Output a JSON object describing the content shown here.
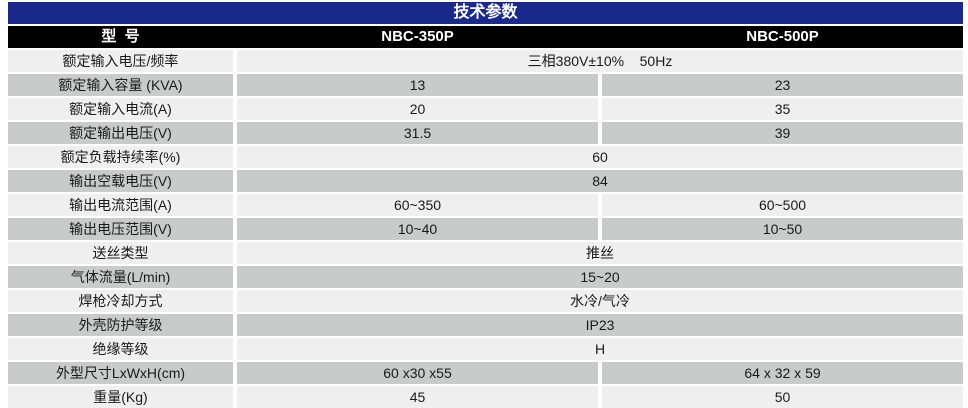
{
  "table": {
    "title": "技术参数",
    "header": {
      "model_label": "型  号",
      "col1": "NBC-350P",
      "col2": "NBC-500P"
    },
    "rows": [
      {
        "label": "额定输入电压/频率",
        "span": "三相380V±10%    50Hz"
      },
      {
        "label": "额定输入容量 (KVA)",
        "v1": "13",
        "v2": "23"
      },
      {
        "label": "额定输入电流(A)",
        "v1": "20",
        "v2": "35"
      },
      {
        "label": "额定输出电压(V)",
        "v1": "31.5",
        "v2": "39"
      },
      {
        "label": "额定负载持续率(%)",
        "span": "60"
      },
      {
        "label": "输出空载电压(V)",
        "span": "84"
      },
      {
        "label": "输出电流范围(A)",
        "v1": "60~350",
        "v2": "60~500"
      },
      {
        "label": "输出电压范围(V)",
        "v1": "10~40",
        "v2": "10~50"
      },
      {
        "label": "送丝类型",
        "span": "推丝"
      },
      {
        "label": "气体流量(L/min)",
        "span": "15~20"
      },
      {
        "label": "焊枪冷却方式",
        "span": "水冷/气冷"
      },
      {
        "label": "外壳防护等级",
        "span": "IP23"
      },
      {
        "label": "绝缘等级",
        "span": "H"
      },
      {
        "label": "外型尺寸LxWxH(cm)",
        "v1": "60 x30 x55",
        "v2": "64 x 32 x 59"
      },
      {
        "label": "重量(Kg)",
        "v1": "45",
        "v2": "50"
      }
    ],
    "colors": {
      "title_bg": "#19298c",
      "model_row_bg": "#000000",
      "row_light": "#efefef",
      "row_dark": "#c9caca",
      "text": "#1a1a1a"
    }
  }
}
